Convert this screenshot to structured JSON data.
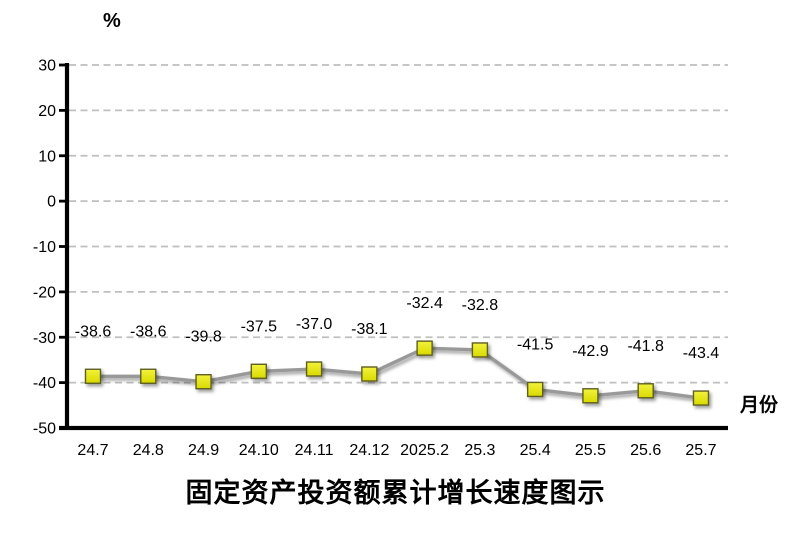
{
  "chart_data": {
    "type": "line",
    "title": "固定资产投资额累计增长速度图示",
    "ylabel": "%",
    "xlabel": "月份",
    "categories": [
      "24.7",
      "24.8",
      "24.9",
      "24.10",
      "24.11",
      "24.12",
      "2025.2",
      "25.3",
      "25.4",
      "25.5",
      "25.6",
      "25.7"
    ],
    "values": [
      -38.6,
      -38.6,
      -39.8,
      -37.5,
      -37.0,
      -38.1,
      -32.4,
      -32.8,
      -41.5,
      -42.9,
      -41.8,
      -43.4
    ],
    "data_labels": [
      "-38.6",
      "-38.6",
      "-39.8",
      "-37.5",
      "-37.0",
      "-38.1",
      "-32.4",
      "-32.8",
      "-41.5",
      "-42.9",
      "-41.8",
      "-43.4"
    ],
    "ylim": [
      -50,
      30
    ],
    "yticks": [
      30,
      20,
      10,
      0,
      -10,
      -20,
      -30,
      -40,
      -50
    ],
    "grid": true,
    "gridline_style": "dashed",
    "legend": "none",
    "marker": "square",
    "colors": {
      "line": "#999999",
      "marker_fill_top": "#f2f23c",
      "marker_fill_bottom": "#d9d900",
      "marker_border": "#5f5f20",
      "gridline": "#bfbfbf",
      "axis": "#000000",
      "text": "#000000"
    }
  }
}
